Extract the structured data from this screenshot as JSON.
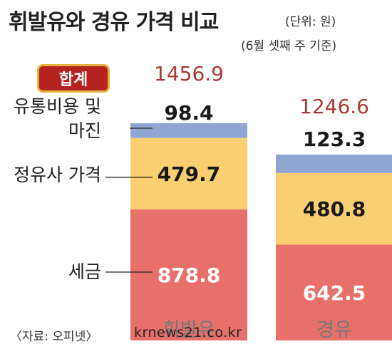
{
  "header": {
    "title": "휘발유와 경유 가격 비교",
    "unit": "(단위: 원)",
    "subtitle": "(6월 셋째 주 기준)"
  },
  "badge": {
    "label": "합계"
  },
  "row_labels": {
    "margin": "유통비용 및 마진",
    "margin_line1": "유통비용 및",
    "margin_line2": "마진",
    "refinery": "정유사 가격",
    "tax": "세금"
  },
  "source": "〈자료: 오피넷〉",
  "watermark": "krnews21.co.kr",
  "chart_data": {
    "type": "bar",
    "stacked": true,
    "title": "휘발유와 경유 가격 비교",
    "unit": "원",
    "categories": [
      "휘발유",
      "경유"
    ],
    "series": [
      {
        "name": "세금",
        "values": [
          878.8,
          642.5
        ],
        "color": "#e8706b"
      },
      {
        "name": "정유사 가격",
        "values": [
          479.7,
          480.8
        ],
        "color": "#f9cf72"
      },
      {
        "name": "유통비용 및 마진",
        "values": [
          98.4,
          123.3
        ],
        "color": "#8fa6d3"
      }
    ],
    "totals": [
      1456.9,
      1246.6
    ],
    "totals_label": "합계"
  },
  "colors": {
    "badge_bg": "#b52320",
    "badge_border": "#e8b23e",
    "total_text": "#a83a36"
  }
}
